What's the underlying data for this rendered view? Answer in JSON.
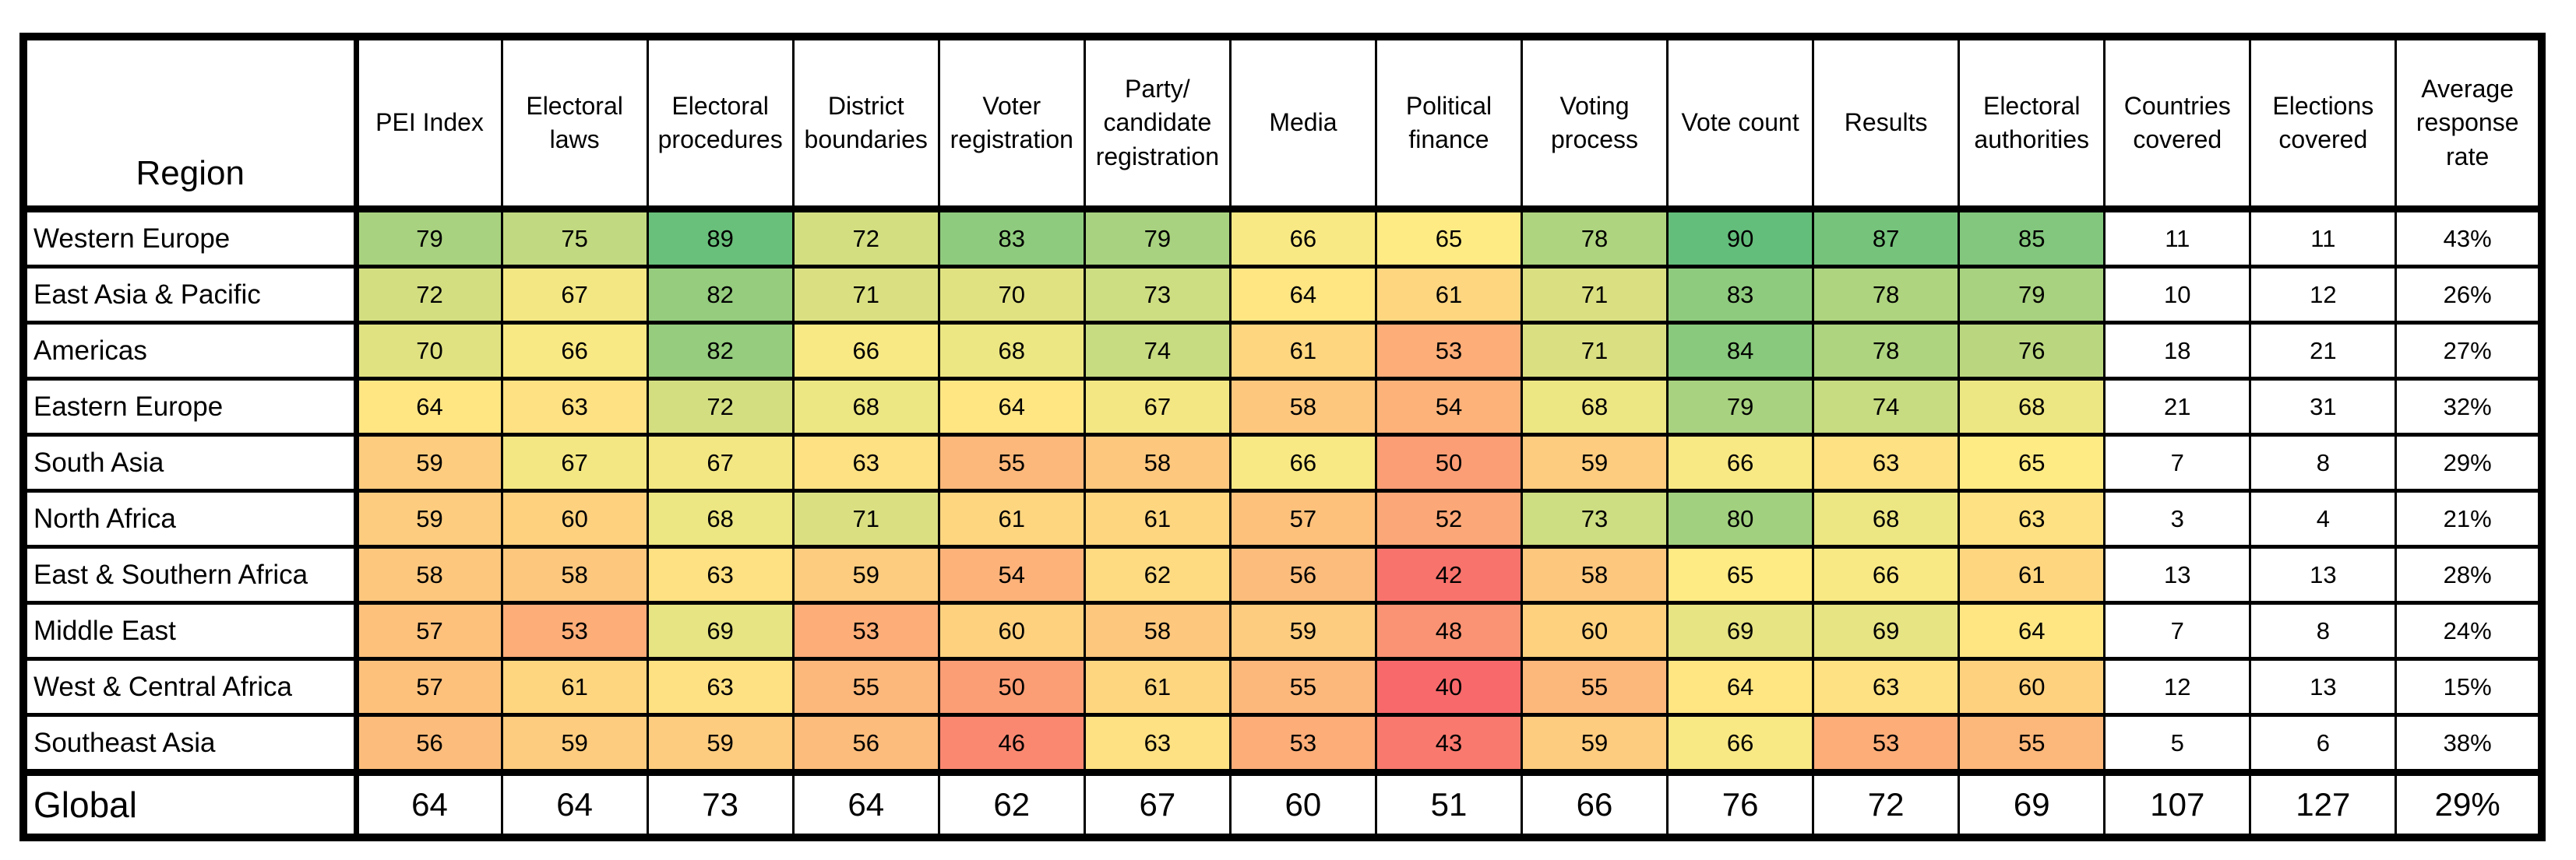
{
  "chart_data": {
    "type": "heatmap",
    "columns": [
      "Region",
      "PEI Index",
      "Electoral laws",
      "Electoral procedures",
      "District boundaries",
      "Voter registration",
      "Party/ candidate registration",
      "Media",
      "Political finance",
      "Voting process",
      "Vote count",
      "Results",
      "Electoral authorities",
      "Countries covered",
      "Elections covered",
      "Average response rate"
    ],
    "score_column_labels": [
      "PEI Index",
      "Electoral laws",
      "Electoral procedures",
      "District boundaries",
      "Voter registration",
      "Party/ candidate registration",
      "Media",
      "Political finance",
      "Voting process",
      "Vote count",
      "Results",
      "Electoral authorities"
    ],
    "rows": [
      {
        "region": "Western Europe",
        "scores": [
          79,
          75,
          89,
          72,
          83,
          79,
          66,
          65,
          78,
          90,
          87,
          85
        ],
        "countries_covered": 11,
        "elections_covered": 11,
        "avg_response_rate": "43%"
      },
      {
        "region": "East Asia & Pacific",
        "scores": [
          72,
          67,
          82,
          71,
          70,
          73,
          64,
          61,
          71,
          83,
          78,
          79
        ],
        "countries_covered": 10,
        "elections_covered": 12,
        "avg_response_rate": "26%"
      },
      {
        "region": "Americas",
        "scores": [
          70,
          66,
          82,
          66,
          68,
          74,
          61,
          53,
          71,
          84,
          78,
          76
        ],
        "countries_covered": 18,
        "elections_covered": 21,
        "avg_response_rate": "27%"
      },
      {
        "region": "Eastern Europe",
        "scores": [
          64,
          63,
          72,
          68,
          64,
          67,
          58,
          54,
          68,
          79,
          74,
          68
        ],
        "countries_covered": 21,
        "elections_covered": 31,
        "avg_response_rate": "32%"
      },
      {
        "region": "South Asia",
        "scores": [
          59,
          67,
          67,
          63,
          55,
          58,
          66,
          50,
          59,
          66,
          63,
          65
        ],
        "countries_covered": 7,
        "elections_covered": 8,
        "avg_response_rate": "29%"
      },
      {
        "region": "North Africa",
        "scores": [
          59,
          60,
          68,
          71,
          61,
          61,
          57,
          52,
          73,
          80,
          68,
          63
        ],
        "countries_covered": 3,
        "elections_covered": 4,
        "avg_response_rate": "21%"
      },
      {
        "region": "East & Southern Africa",
        "scores": [
          58,
          58,
          63,
          59,
          54,
          62,
          56,
          42,
          58,
          65,
          66,
          61
        ],
        "countries_covered": 13,
        "elections_covered": 13,
        "avg_response_rate": "28%"
      },
      {
        "region": "Middle East",
        "scores": [
          57,
          53,
          69,
          53,
          60,
          58,
          59,
          48,
          60,
          69,
          69,
          64
        ],
        "countries_covered": 7,
        "elections_covered": 8,
        "avg_response_rate": "24%"
      },
      {
        "region": "West & Central Africa",
        "scores": [
          57,
          61,
          63,
          55,
          50,
          61,
          55,
          40,
          55,
          64,
          63,
          60
        ],
        "countries_covered": 12,
        "elections_covered": 13,
        "avg_response_rate": "15%"
      },
      {
        "region": "Southeast Asia",
        "scores": [
          56,
          59,
          59,
          56,
          46,
          63,
          53,
          43,
          59,
          66,
          53,
          55
        ],
        "countries_covered": 5,
        "elections_covered": 6,
        "avg_response_rate": "38%"
      }
    ],
    "global_row": {
      "region": "Global",
      "scores": [
        64,
        64,
        73,
        64,
        62,
        67,
        60,
        51,
        66,
        76,
        72,
        69
      ],
      "countries_covered": 107,
      "elections_covered": 127,
      "avg_response_rate": "29%"
    },
    "color_scale": {
      "min": 40,
      "min_color": "#F8696B",
      "mid": 65,
      "mid_color": "#FFEB84",
      "max": 90,
      "max_color": "#63BE7B"
    },
    "layout": {
      "grid": "on",
      "heatmap_applies_to": "region score columns only; Global row and coverage columns are white",
      "border_color": "#000000",
      "text_color": "#000000"
    }
  }
}
